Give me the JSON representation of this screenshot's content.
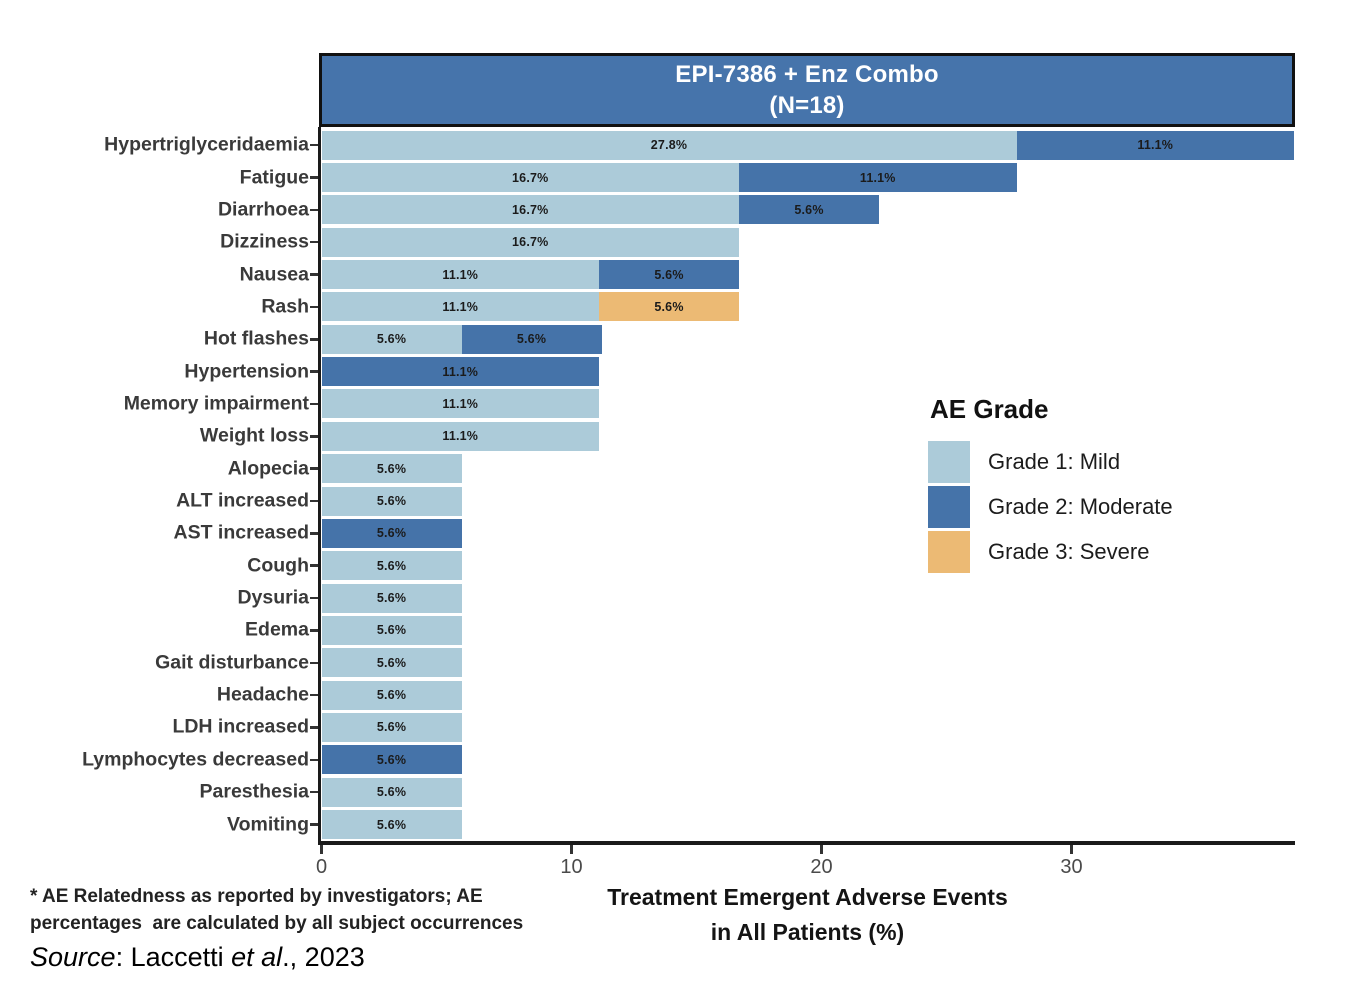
{
  "chart_data": {
    "type": "bar",
    "orientation": "horizontal-stacked",
    "title_line1": "EPI-7386 + Enz Combo",
    "title_line2": "(N=18)",
    "xlabel_line1": "Treatment Emergent Adverse Events",
    "xlabel_line2": "in All Patients (%)",
    "xlim": [
      0,
      38.9
    ],
    "x_ticks": [
      "0",
      "10",
      "20",
      "30"
    ],
    "x_tick_values": [
      0,
      10,
      20,
      30
    ],
    "grid": false,
    "grade_colors": {
      "g1": "#accbd9",
      "g2": "#4573a9",
      "g3": "#ecba74"
    },
    "legend": {
      "title": "AE Grade",
      "position": "right-inside",
      "entries": [
        {
          "label": "Grade 1: Mild",
          "color": "#accbd9"
        },
        {
          "label": "Grade 2: Moderate",
          "color": "#4573a9"
        },
        {
          "label": "Grade 3: Severe",
          "color": "#ecba74"
        }
      ]
    },
    "rows": [
      {
        "label": "Hypertriglyceridaemia",
        "segments": [
          {
            "grade": "g1",
            "value": 27.8,
            "text": "27.8%"
          },
          {
            "grade": "g2",
            "value": 11.1,
            "text": "11.1%"
          }
        ]
      },
      {
        "label": "Fatigue",
        "segments": [
          {
            "grade": "g1",
            "value": 16.7,
            "text": "16.7%"
          },
          {
            "grade": "g2",
            "value": 11.1,
            "text": "11.1%"
          }
        ]
      },
      {
        "label": "Diarrhoea",
        "segments": [
          {
            "grade": "g1",
            "value": 16.7,
            "text": "16.7%"
          },
          {
            "grade": "g2",
            "value": 5.6,
            "text": "5.6%"
          }
        ]
      },
      {
        "label": "Dizziness",
        "segments": [
          {
            "grade": "g1",
            "value": 16.7,
            "text": "16.7%"
          }
        ]
      },
      {
        "label": "Nausea",
        "segments": [
          {
            "grade": "g1",
            "value": 11.1,
            "text": "11.1%"
          },
          {
            "grade": "g2",
            "value": 5.6,
            "text": "5.6%"
          }
        ]
      },
      {
        "label": "Rash",
        "segments": [
          {
            "grade": "g1",
            "value": 11.1,
            "text": "11.1%"
          },
          {
            "grade": "g3",
            "value": 5.6,
            "text": "5.6%"
          }
        ]
      },
      {
        "label": "Hot flashes",
        "segments": [
          {
            "grade": "g1",
            "value": 5.6,
            "text": "5.6%"
          },
          {
            "grade": "g2",
            "value": 5.6,
            "text": "5.6%"
          }
        ]
      },
      {
        "label": "Hypertension",
        "segments": [
          {
            "grade": "g2",
            "value": 11.1,
            "text": "11.1%"
          }
        ]
      },
      {
        "label": "Memory impairment",
        "segments": [
          {
            "grade": "g1",
            "value": 11.1,
            "text": "11.1%"
          }
        ]
      },
      {
        "label": "Weight loss",
        "segments": [
          {
            "grade": "g1",
            "value": 11.1,
            "text": "11.1%"
          }
        ]
      },
      {
        "label": "Alopecia",
        "segments": [
          {
            "grade": "g1",
            "value": 5.6,
            "text": "5.6%"
          }
        ]
      },
      {
        "label": "ALT increased",
        "segments": [
          {
            "grade": "g1",
            "value": 5.6,
            "text": "5.6%"
          }
        ]
      },
      {
        "label": "AST increased",
        "segments": [
          {
            "grade": "g2",
            "value": 5.6,
            "text": "5.6%"
          }
        ]
      },
      {
        "label": "Cough",
        "segments": [
          {
            "grade": "g1",
            "value": 5.6,
            "text": "5.6%"
          }
        ]
      },
      {
        "label": "Dysuria",
        "segments": [
          {
            "grade": "g1",
            "value": 5.6,
            "text": "5.6%"
          }
        ]
      },
      {
        "label": "Edema",
        "segments": [
          {
            "grade": "g1",
            "value": 5.6,
            "text": "5.6%"
          }
        ]
      },
      {
        "label": "Gait disturbance",
        "segments": [
          {
            "grade": "g1",
            "value": 5.6,
            "text": "5.6%"
          }
        ]
      },
      {
        "label": "Headache",
        "segments": [
          {
            "grade": "g1",
            "value": 5.6,
            "text": "5.6%"
          }
        ]
      },
      {
        "label": "LDH increased",
        "segments": [
          {
            "grade": "g1",
            "value": 5.6,
            "text": "5.6%"
          }
        ]
      },
      {
        "label": "Lymphocytes decreased",
        "segments": [
          {
            "grade": "g2",
            "value": 5.6,
            "text": "5.6%"
          }
        ]
      },
      {
        "label": "Paresthesia",
        "segments": [
          {
            "grade": "g1",
            "value": 5.6,
            "text": "5.6%"
          }
        ]
      },
      {
        "label": "Vomiting",
        "segments": [
          {
            "grade": "g1",
            "value": 5.6,
            "text": "5.6%"
          }
        ]
      }
    ]
  },
  "title_box_color": "#4674ab",
  "footnote": {
    "line1": "* AE Relatedness as reported by investigators; AE",
    "line2": "percentages  are calculated by all subject occurrences"
  },
  "source": {
    "word_italic": "Source",
    "middle": ": Laccetti ",
    "etal_italic": "et al",
    "suffix": "., 2023"
  }
}
